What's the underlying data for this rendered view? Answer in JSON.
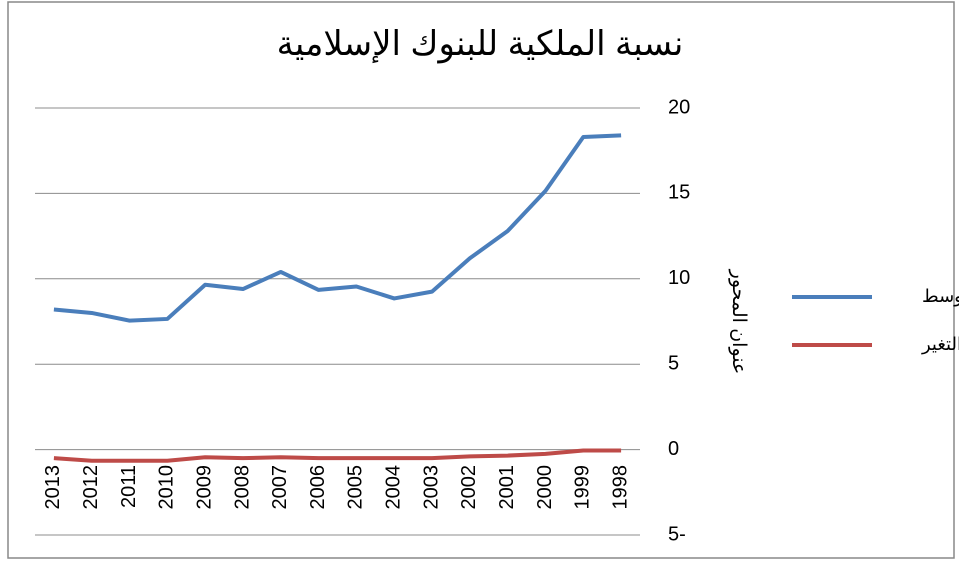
{
  "chart_data": {
    "type": "line",
    "title": "نسبة الملكية للبنوك الإسلامية",
    "y_axis_label": "عنوان المحور",
    "categories": [
      "2013",
      "2012",
      "2011",
      "2010",
      "2009",
      "2008",
      "2007",
      "2006",
      "2005",
      "2004",
      "2003",
      "2002",
      "2001",
      "2000",
      "1999",
      "1998"
    ],
    "series": [
      {
        "name": "المتوسط",
        "color": "#4a7ebb",
        "values": [
          8.2,
          8.0,
          7.55,
          7.65,
          9.65,
          9.4,
          10.4,
          9.35,
          9.55,
          8.85,
          9.25,
          11.2,
          12.8,
          15.15,
          18.3,
          18.4
        ]
      },
      {
        "name": "نسبة التغير",
        "color": "#be4b48",
        "values": [
          -0.5,
          -0.65,
          -0.65,
          -0.65,
          -0.45,
          -0.5,
          -0.45,
          -0.5,
          -0.5,
          -0.5,
          -0.5,
          -0.4,
          -0.35,
          -0.25,
          -0.05,
          -0.05
        ]
      }
    ],
    "ylim": [
      -5,
      20
    ],
    "yticks": [
      {
        "value": -5,
        "label": "5-"
      },
      0,
      5,
      10,
      15,
      20
    ],
    "grid": true,
    "legend": "right"
  }
}
